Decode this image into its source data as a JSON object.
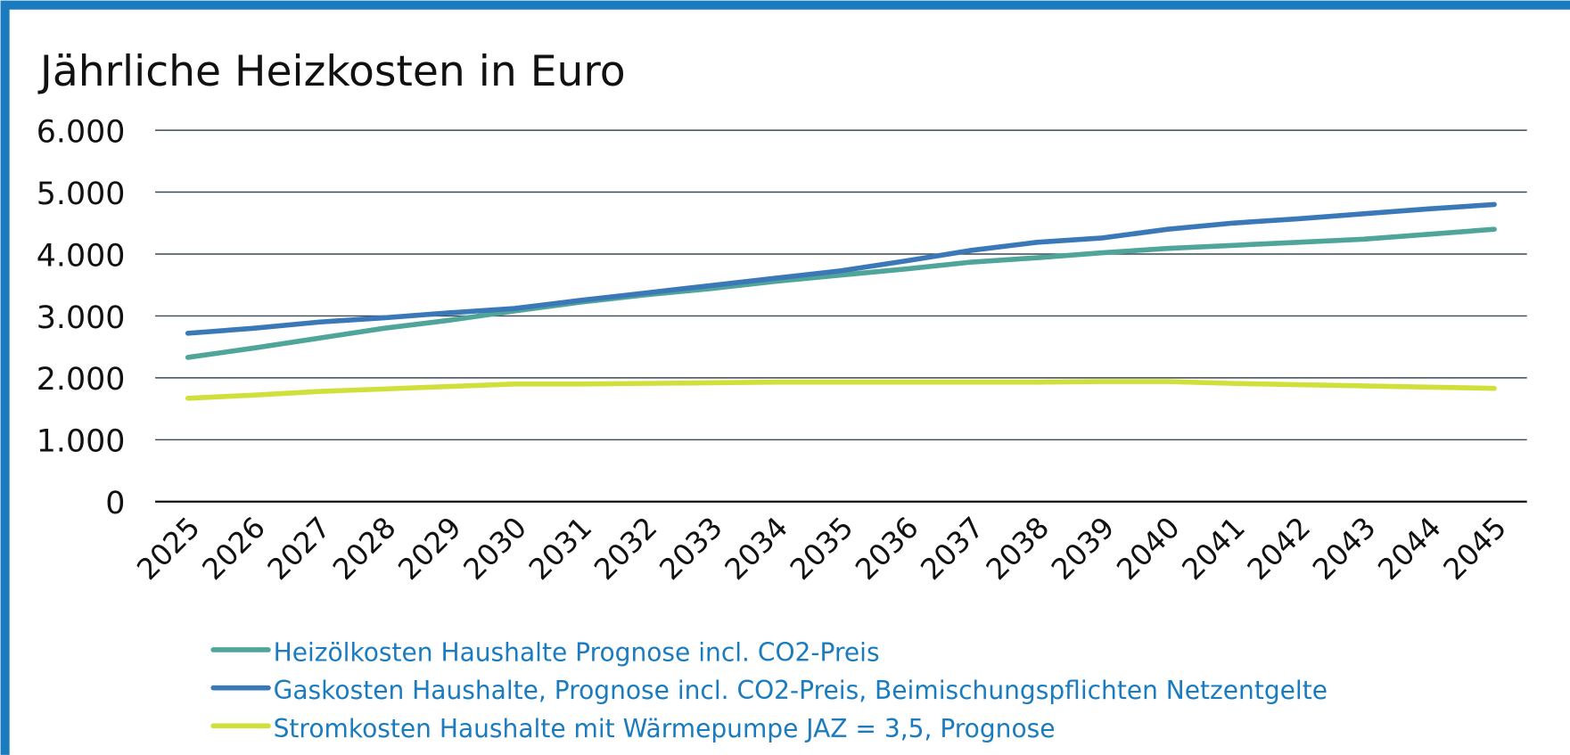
{
  "chart_data": {
    "type": "line",
    "title": "Jährliche Heizkosten in Euro",
    "categories": [
      "2025",
      "2026",
      "2027",
      "2028",
      "2029",
      "2030",
      "2031",
      "2032",
      "2033",
      "2034",
      "2035",
      "2036",
      "2037",
      "2038",
      "2039",
      "2040",
      "2041",
      "2042",
      "2043",
      "2044",
      "2045"
    ],
    "series": [
      {
        "name": "Heizölkosten Haushalte Prognose incl. CO2-Preis",
        "color": "#4fa59a",
        "values": [
          2330,
          2480,
          2640,
          2800,
          2930,
          3080,
          3220,
          3340,
          3440,
          3560,
          3660,
          3760,
          3870,
          3940,
          4020,
          4090,
          4140,
          4190,
          4240,
          4320,
          4400
        ]
      },
      {
        "name": "Gaskosten Haushalte, Prognose incl. CO2-Preis, Beimischungspflichten Netzentgelte",
        "color": "#3a78b8",
        "values": [
          2720,
          2800,
          2900,
          2970,
          3050,
          3120,
          3250,
          3370,
          3490,
          3610,
          3730,
          3890,
          4060,
          4190,
          4260,
          4400,
          4500,
          4570,
          4650,
          4730,
          4800
        ]
      },
      {
        "name": "Stromkosten Haushalte mit Wärmepumpe JAZ = 3,5, Prognose",
        "color": "#cfe03a",
        "values": [
          1670,
          1720,
          1780,
          1820,
          1860,
          1900,
          1900,
          1910,
          1920,
          1930,
          1930,
          1930,
          1930,
          1930,
          1940,
          1940,
          1910,
          1890,
          1870,
          1850,
          1830
        ]
      }
    ],
    "ylim": [
      0,
      6000
    ],
    "yticks": [
      0,
      {
        "value": 1000,
        "label": "1.000"
      },
      {
        "value": 2000,
        "label": "2.000"
      },
      {
        "value": 3000,
        "label": "3.000"
      },
      {
        "value": 4000,
        "label": "4.000"
      },
      {
        "value": 5000,
        "label": "5.000"
      },
      {
        "value": 6000,
        "label": "6.000"
      }
    ],
    "grid": true,
    "legend": "bottom"
  }
}
